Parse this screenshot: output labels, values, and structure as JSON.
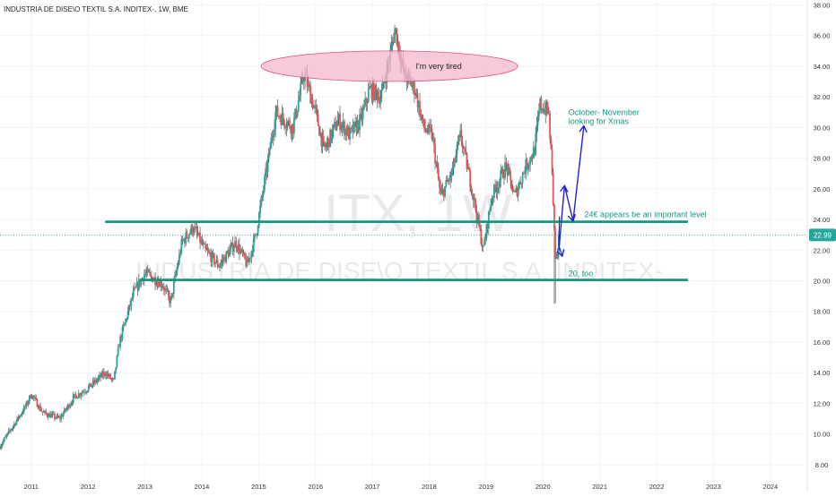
{
  "header": {
    "title": "INDUSTRIA DE DISE\\O TEXTIL S.A. INDITEX-, 1W, BME"
  },
  "watermark": {
    "symbol": "ITX, 1W",
    "name": "INDUSTRIA DE DISE\\O TEXTIL S.A. INDITEX-"
  },
  "price_tag": {
    "value": "22.99",
    "color": "#26a69a"
  },
  "colors": {
    "up": "#26a69a",
    "down": "#ef5350",
    "wick": "#555555",
    "level_line": "#13977f",
    "arrow": "#1e22d8",
    "annotation_text": "#13977f",
    "ellipse_fill": "#f6b8cc",
    "ellipse_stroke": "#e0507e"
  },
  "chart_data": {
    "type": "candlestick",
    "title": "INDUSTRIA DE DISE\\O TEXTIL S.A. INDITEX-, 1W, BME",
    "x_ticks": [
      "2011",
      "2012",
      "2013",
      "2014",
      "2015",
      "2016",
      "2017",
      "2018",
      "2019",
      "2020",
      "2021",
      "2022",
      "2023",
      "2024"
    ],
    "y_ticks": [
      "8.00",
      "10.00",
      "12.00",
      "14.00",
      "16.00",
      "18.00",
      "20.00",
      "22.00",
      "24.00",
      "26.00",
      "28.00",
      "30.00",
      "32.00",
      "34.00",
      "36.00",
      "38.00"
    ],
    "ylim": [
      7,
      38.2
    ],
    "xlim": [
      2010.45,
      2024.65
    ],
    "last_price": 22.99,
    "series_anchors": [
      [
        2010.45,
        9.2
      ],
      [
        2010.9,
        11.8
      ],
      [
        2011.0,
        12.6
      ],
      [
        2011.2,
        11.4
      ],
      [
        2011.5,
        11.0
      ],
      [
        2011.75,
        12.4
      ],
      [
        2012.0,
        13.0
      ],
      [
        2012.3,
        14.0
      ],
      [
        2012.45,
        13.4
      ],
      [
        2012.55,
        16.0
      ],
      [
        2012.8,
        19.2
      ],
      [
        2013.0,
        20.5
      ],
      [
        2013.3,
        19.8
      ],
      [
        2013.45,
        18.6
      ],
      [
        2013.65,
        22.5
      ],
      [
        2013.85,
        23.5
      ],
      [
        2014.05,
        22.0
      ],
      [
        2014.3,
        21.0
      ],
      [
        2014.6,
        22.5
      ],
      [
        2014.8,
        21.0
      ],
      [
        2014.95,
        23.0
      ],
      [
        2015.15,
        27.5
      ],
      [
        2015.3,
        31.0
      ],
      [
        2015.6,
        30.0
      ],
      [
        2015.8,
        33.5
      ],
      [
        2016.0,
        31.0
      ],
      [
        2016.15,
        28.5
      ],
      [
        2016.4,
        30.5
      ],
      [
        2016.6,
        29.5
      ],
      [
        2016.8,
        30.5
      ],
      [
        2016.95,
        32.5
      ],
      [
        2017.15,
        32.0
      ],
      [
        2017.3,
        34.5
      ],
      [
        2017.4,
        36.5
      ],
      [
        2017.55,
        33.5
      ],
      [
        2017.75,
        32.5
      ],
      [
        2017.9,
        30.0
      ],
      [
        2018.05,
        29.5
      ],
      [
        2018.2,
        25.5
      ],
      [
        2018.4,
        27.0
      ],
      [
        2018.55,
        29.5
      ],
      [
        2018.75,
        26.0
      ],
      [
        2018.95,
        22.0
      ],
      [
        2019.1,
        25.5
      ],
      [
        2019.35,
        27.5
      ],
      [
        2019.5,
        25.5
      ],
      [
        2019.7,
        27.5
      ],
      [
        2019.85,
        28.5
      ],
      [
        2019.95,
        31.5
      ],
      [
        2020.1,
        31.0
      ],
      [
        2020.17,
        26.5
      ],
      [
        2020.22,
        21.5
      ],
      [
        2020.3,
        22.99
      ]
    ],
    "horizontal_levels": [
      {
        "price": 23.85,
        "from": 2012.3,
        "to": 2022.55
      },
      {
        "price": 20.05,
        "from": 2012.9,
        "to": 2022.55
      }
    ],
    "annotations": [
      {
        "id": "tired",
        "text": "I'm very tired",
        "kind": "ellipse",
        "x": 2017.3,
        "y": 34.0
      },
      {
        "id": "xmas",
        "lines": [
          "October- November",
          "looking for Xmas"
        ],
        "x": 2020.45,
        "y": 30.8
      },
      {
        "id": "level24",
        "text": "24€ appears be an important level",
        "x": 2020.73,
        "y": 24.15
      },
      {
        "id": "level20",
        "text": "20, too",
        "x": 2020.45,
        "y": 20.3
      }
    ],
    "arrow_path": [
      [
        2020.28,
        22.0
      ],
      [
        2020.38,
        26.2
      ],
      [
        2020.53,
        23.9
      ],
      [
        2020.72,
        30.1
      ]
    ],
    "arrow_small": [
      [
        2020.29,
        24.2
      ],
      [
        2020.28,
        22.3
      ],
      [
        2020.34,
        21.6
      ]
    ]
  }
}
